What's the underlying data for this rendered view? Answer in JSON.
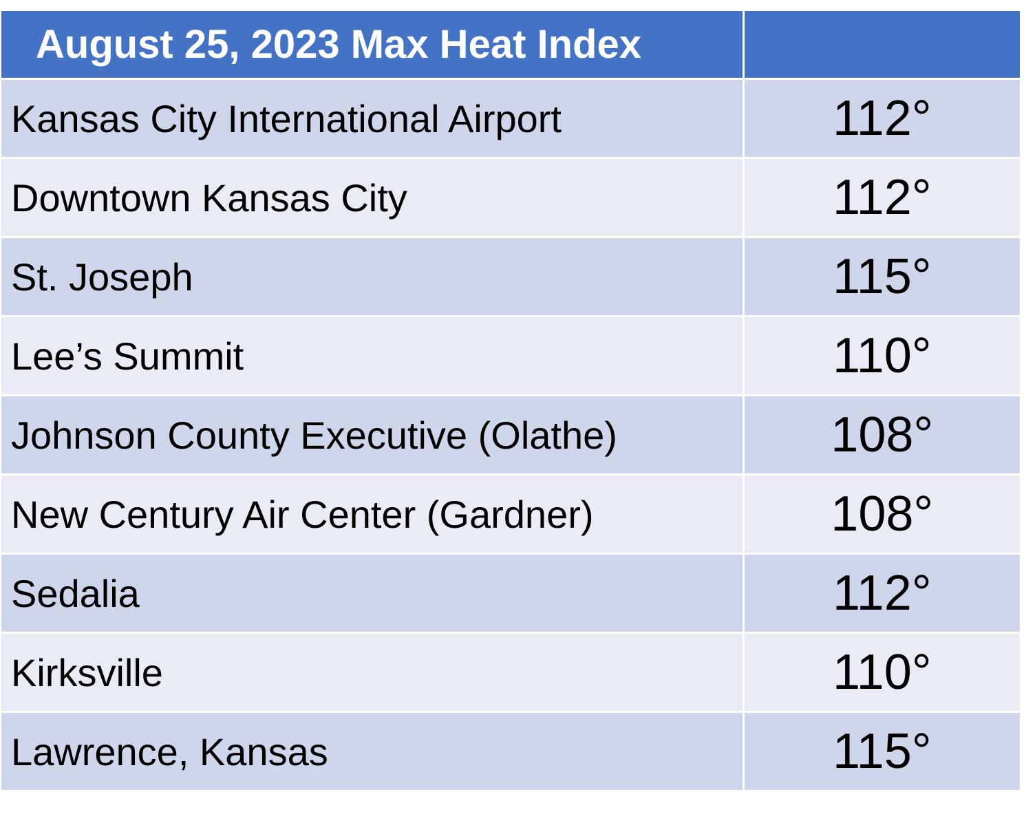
{
  "table": {
    "title": "August 25, 2023 Max Heat Index",
    "value_header": "",
    "rows": [
      {
        "location": "Kansas City International Airport",
        "value": "112°"
      },
      {
        "location": "Downtown Kansas City",
        "value": "112°"
      },
      {
        "location": "St. Joseph",
        "value": "115°"
      },
      {
        "location": "Lee’s Summit",
        "value": "110°"
      },
      {
        "location": "Johnson County Executive (Olathe)",
        "value": "108°"
      },
      {
        "location": "New Century Air Center (Gardner)",
        "value": "108°"
      },
      {
        "location": "Sedalia",
        "value": "112°"
      },
      {
        "location": "Kirksville",
        "value": "110°"
      },
      {
        "location": "Lawrence, Kansas",
        "value": "115°"
      }
    ]
  },
  "colors": {
    "header": "#4472c4",
    "row_dark": "#cfd5ea",
    "row_light": "#e9ebf5"
  }
}
